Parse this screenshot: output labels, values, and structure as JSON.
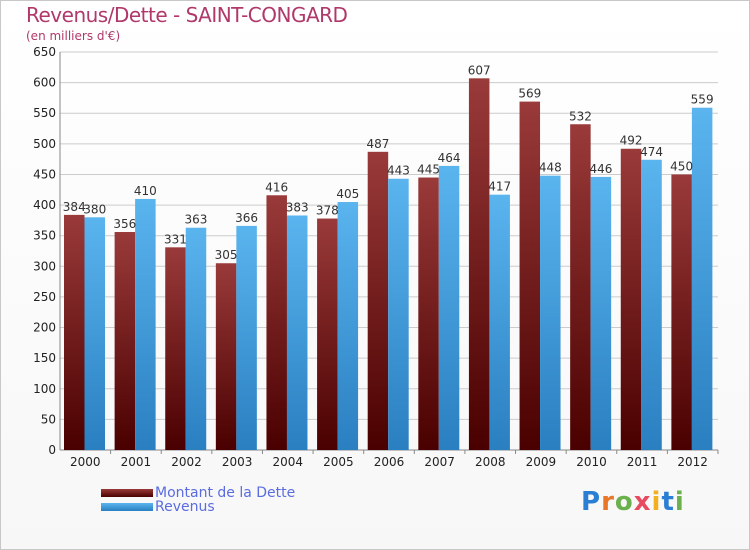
{
  "header": {
    "title": "Revenus/Dette - SAINT-CONGARD",
    "subtitle": "(en milliers d'€)"
  },
  "logo": {
    "text": "Proxiti"
  },
  "colors": {
    "dette_dark": "#4a0000",
    "dette_light": "#9a3a3a",
    "revenus_dark": "#2a7fc0",
    "revenus_light": "#5ab4ee",
    "grid": "#cccccc"
  },
  "chart_data": {
    "type": "bar",
    "categories": [
      "2000",
      "2001",
      "2002",
      "2003",
      "2004",
      "2005",
      "2006",
      "2007",
      "2008",
      "2009",
      "2010",
      "2011",
      "2012"
    ],
    "series": [
      {
        "name": "Montant de la Dette",
        "values": [
          384,
          356,
          331,
          305,
          416,
          378,
          487,
          445,
          607,
          569,
          532,
          492,
          450
        ]
      },
      {
        "name": "Revenus",
        "values": [
          380,
          410,
          363,
          366,
          383,
          405,
          443,
          464,
          417,
          448,
          446,
          474,
          559
        ]
      }
    ],
    "yticks": [
      0,
      50,
      100,
      150,
      200,
      250,
      300,
      350,
      400,
      450,
      500,
      550,
      600,
      650
    ],
    "ylim": [
      0,
      650
    ],
    "grid": true,
    "legend_position": "bottom-left"
  }
}
